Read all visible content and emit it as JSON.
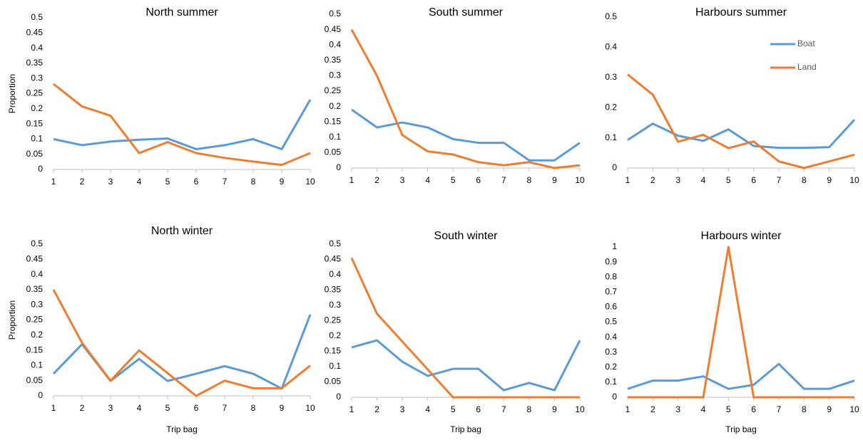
{
  "chart_data": [
    {
      "type": "line",
      "title": "North summer",
      "y_label": "Proportion",
      "x": [
        1,
        2,
        3,
        4,
        5,
        6,
        7,
        8,
        9,
        10
      ],
      "xlim": [
        1,
        10
      ],
      "xticks": [
        1,
        2,
        3,
        4,
        5,
        6,
        7,
        8,
        9,
        10
      ],
      "ylim": [
        0,
        0.5
      ],
      "yticks": [
        0,
        0.05,
        0.1,
        0.15,
        0.2,
        0.25,
        0.3,
        0.35,
        0.4,
        0.45,
        0.5
      ],
      "series": [
        {
          "color": "#5b9bd5",
          "values": [
            0.1,
            0.08,
            0.092,
            0.098,
            0.102,
            0.067,
            0.08,
            0.1,
            0.067,
            0.23
          ]
        },
        {
          "color": "#ed7d31",
          "values": [
            0.282,
            0.208,
            0.177,
            0.054,
            0.09,
            0.054,
            0.038,
            0.026,
            0.015,
            0.054
          ]
        }
      ]
    },
    {
      "type": "line",
      "title": "South summer",
      "x": [
        1,
        2,
        3,
        4,
        5,
        6,
        7,
        8,
        9,
        10
      ],
      "xlim": [
        1,
        10
      ],
      "xticks": [
        1,
        2,
        3,
        4,
        5,
        6,
        7,
        8,
        9,
        10
      ],
      "ylim": [
        0,
        0.5
      ],
      "yticks": [
        0,
        0.05,
        0.1,
        0.15,
        0.2,
        0.25,
        0.3,
        0.35,
        0.4,
        0.45,
        0.5
      ],
      "series": [
        {
          "color": "#5b9bd5",
          "values": [
            0.19,
            0.132,
            0.148,
            0.132,
            0.094,
            0.082,
            0.082,
            0.025,
            0.025,
            0.082
          ]
        },
        {
          "color": "#ed7d31",
          "values": [
            0.45,
            0.3,
            0.107,
            0.054,
            0.044,
            0.019,
            0.009,
            0.019,
            0,
            0.009
          ]
        }
      ]
    },
    {
      "type": "line",
      "title": "Harbours summer",
      "legend": "upper right",
      "x": [
        1,
        2,
        3,
        4,
        5,
        6,
        7,
        8,
        9,
        10
      ],
      "xlim": [
        1,
        10
      ],
      "xticks": [
        1,
        2,
        3,
        4,
        5,
        6,
        7,
        8,
        9,
        10
      ],
      "ylim": [
        0,
        0.5
      ],
      "yticks": [
        0,
        0.1,
        0.2,
        0.3,
        0.4,
        0.5
      ],
      "series": [
        {
          "name": "Boat",
          "color": "#5b9bd5",
          "values": [
            0.093,
            0.147,
            0.107,
            0.09,
            0.128,
            0.073,
            0.067,
            0.067,
            0.069,
            0.16
          ]
        },
        {
          "name": "Land",
          "color": "#ed7d31",
          "values": [
            0.31,
            0.243,
            0.087,
            0.11,
            0.066,
            0.088,
            0.022,
            0,
            0.022,
            0.044
          ]
        }
      ]
    },
    {
      "type": "line",
      "title": "North winter",
      "y_label": "Proportion",
      "x_label": "Trip bag",
      "x": [
        1,
        2,
        3,
        4,
        5,
        6,
        7,
        8,
        9,
        10
      ],
      "xlim": [
        1,
        10
      ],
      "xticks": [
        1,
        2,
        3,
        4,
        5,
        6,
        7,
        8,
        9,
        10
      ],
      "ylim": [
        0,
        0.5
      ],
      "yticks": [
        0,
        0.05,
        0.1,
        0.15,
        0.2,
        0.25,
        0.3,
        0.35,
        0.4,
        0.45,
        0.5
      ],
      "series": [
        {
          "color": "#5b9bd5",
          "values": [
            0.073,
            0.17,
            0.049,
            0.122,
            0.049,
            0.073,
            0.098,
            0.073,
            0.024,
            0.268
          ]
        },
        {
          "color": "#ed7d31",
          "values": [
            0.35,
            0.175,
            0.05,
            0.15,
            0.075,
            0,
            0.05,
            0.025,
            0.025,
            0.1
          ]
        }
      ]
    },
    {
      "type": "line",
      "title": "South winter",
      "x_label": "Trip bag",
      "x": [
        1,
        2,
        3,
        4,
        5,
        6,
        7,
        8,
        9,
        10
      ],
      "xlim": [
        1,
        10
      ],
      "xticks": [
        1,
        2,
        3,
        4,
        5,
        6,
        7,
        8,
        9,
        10
      ],
      "ylim": [
        0,
        0.5
      ],
      "yticks": [
        0,
        0.05,
        0.1,
        0.15,
        0.2,
        0.25,
        0.3,
        0.35,
        0.4,
        0.45,
        0.5
      ],
      "series": [
        {
          "color": "#5b9bd5",
          "values": [
            0.163,
            0.186,
            0.116,
            0.07,
            0.093,
            0.093,
            0.023,
            0.047,
            0.023,
            0.186
          ]
        },
        {
          "color": "#ed7d31",
          "values": [
            0.455,
            0.273,
            0.182,
            0.091,
            0,
            0,
            0,
            0,
            0,
            0
          ]
        }
      ]
    },
    {
      "type": "line",
      "title": "Harbours winter",
      "x_label": "Trip bag",
      "x": [
        1,
        2,
        3,
        4,
        5,
        6,
        7,
        8,
        9,
        10
      ],
      "xlim": [
        1,
        10
      ],
      "xticks": [
        1,
        2,
        3,
        4,
        5,
        6,
        7,
        8,
        9,
        10
      ],
      "ylim": [
        0,
        1
      ],
      "yticks": [
        0,
        0.1,
        0.2,
        0.3,
        0.4,
        0.5,
        0.6,
        0.7,
        0.8,
        0.9,
        1
      ],
      "series": [
        {
          "color": "#5b9bd5",
          "values": [
            0.056,
            0.111,
            0.111,
            0.139,
            0.056,
            0.083,
            0.222,
            0.056,
            0.056,
            0.111
          ]
        },
        {
          "color": "#ed7d31",
          "values": [
            0,
            0,
            0,
            0,
            1,
            0,
            0,
            0,
            0,
            0
          ]
        }
      ]
    }
  ]
}
